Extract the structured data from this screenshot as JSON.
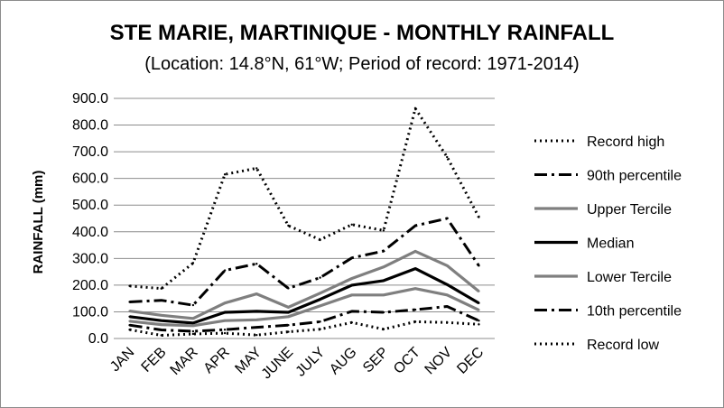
{
  "chart_data": {
    "type": "line",
    "title": "STE MARIE, MARTINIQUE - MONTHLY RAINFALL",
    "subtitle": "(Location: 14.8°N, 61°W; Period of record: 1971-2014)",
    "xlabel": "",
    "ylabel": "RAINFALL (mm)",
    "ylim": [
      0,
      900
    ],
    "y_ticks": [
      "0.0",
      "100.0",
      "200.0",
      "300.0",
      "400.0",
      "500.0",
      "600.0",
      "700.0",
      "800.0",
      "900.0"
    ],
    "grid": "horizontal major gridlines",
    "legend_position": "right",
    "categories": [
      "JAN",
      "FEB",
      "MAR",
      "APR",
      "MAY",
      "JUNE",
      "JULY",
      "AUG",
      "SEP",
      "OCT",
      "NOV",
      "DEC"
    ],
    "series": [
      {
        "name": "Record high",
        "color": "#000000",
        "style": "dotted",
        "values": [
          197,
          187,
          283,
          615,
          638,
          423,
          370,
          427,
          405,
          862,
          680,
          455
        ]
      },
      {
        "name": "90th percentile",
        "color": "#000000",
        "style": "dashdot",
        "values": [
          137,
          143,
          125,
          255,
          280,
          188,
          228,
          302,
          328,
          423,
          450,
          273
        ]
      },
      {
        "name": "Upper Tercile",
        "color": "#7f7f7f",
        "style": "solid",
        "values": [
          103,
          87,
          75,
          133,
          167,
          117,
          170,
          225,
          268,
          327,
          273,
          177
        ]
      },
      {
        "name": "Median",
        "color": "#000000",
        "style": "solid",
        "values": [
          82,
          67,
          58,
          98,
          102,
          98,
          147,
          200,
          217,
          262,
          202,
          133
        ]
      },
      {
        "name": "Lower Tercile",
        "color": "#7f7f7f",
        "style": "solid",
        "values": [
          65,
          52,
          48,
          67,
          70,
          82,
          122,
          163,
          163,
          187,
          163,
          107
        ]
      },
      {
        "name": "10th percentile",
        "color": "#000000",
        "style": "dashdot",
        "values": [
          50,
          32,
          27,
          33,
          42,
          50,
          63,
          102,
          98,
          108,
          120,
          67
        ]
      },
      {
        "name": "Record low",
        "color": "#000000",
        "style": "dotted",
        "values": [
          33,
          12,
          17,
          20,
          13,
          25,
          35,
          60,
          35,
          63,
          60,
          53
        ]
      }
    ]
  }
}
